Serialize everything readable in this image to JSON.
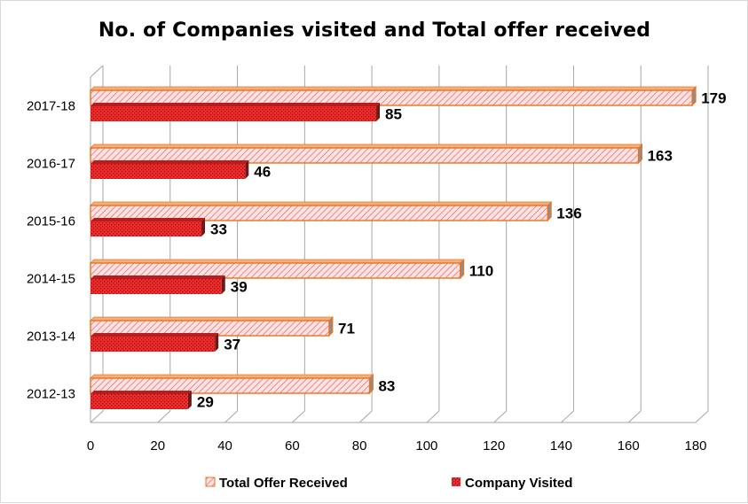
{
  "chart_data": {
    "type": "bar",
    "orientation": "horizontal",
    "title": "No. of Companies visited and Total offer received",
    "categories": [
      "2012-13",
      "2013-14",
      "2014-15",
      "2015-16",
      "2016-17",
      "2017-18"
    ],
    "series": [
      {
        "name": "Total Offer Received",
        "values": [
          83,
          71,
          110,
          136,
          163,
          179
        ]
      },
      {
        "name": "Company Visited",
        "values": [
          29,
          37,
          39,
          33,
          46,
          85
        ]
      }
    ],
    "xlim": [
      0,
      180
    ],
    "x_ticks": [
      "0",
      "20",
      "40",
      "60",
      "80",
      "100",
      "120",
      "140",
      "160",
      "180"
    ],
    "grid": true,
    "legend_position": "bottom",
    "colors": {
      "total_fill": "#fde4e4",
      "total_hatch": "#ef6b6b",
      "total_border": "#e8731e",
      "company_fill": "#f22c2c",
      "company_dot": "#8e1010",
      "grid": "#a6a6a6"
    }
  }
}
